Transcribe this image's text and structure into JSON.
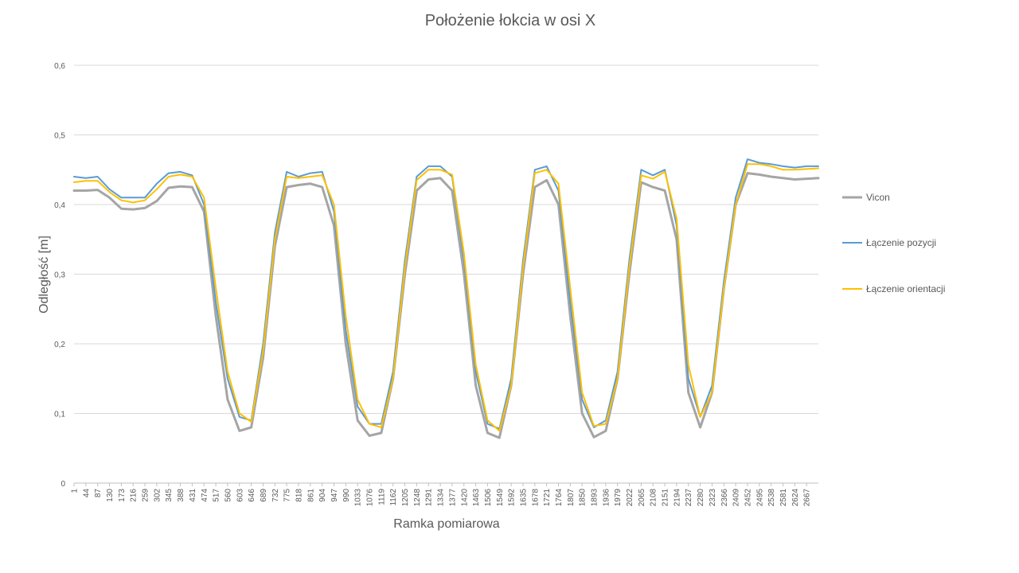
{
  "chart_data": {
    "type": "line",
    "title": "Położenie łokcia w osi X",
    "xlabel": "Ramka pomiarowa",
    "ylabel": "Odległość [m]",
    "ylim": [
      0,
      0.6
    ],
    "y_ticks": [
      "0",
      "0,1",
      "0,2",
      "0,3",
      "0,4",
      "0,5",
      "0,6"
    ],
    "x_range": [
      1,
      2710
    ],
    "x_ticks": [
      "1",
      "44",
      "87",
      "130",
      "173",
      "216",
      "259",
      "302",
      "345",
      "388",
      "431",
      "474",
      "517",
      "560",
      "603",
      "646",
      "689",
      "732",
      "775",
      "818",
      "861",
      "904",
      "947",
      "990",
      "1033",
      "1076",
      "1119",
      "1162",
      "1205",
      "1248",
      "1291",
      "1334",
      "1377",
      "1420",
      "1463",
      "1506",
      "1549",
      "1592",
      "1635",
      "1678",
      "1721",
      "1764",
      "1807",
      "1850",
      "1893",
      "1936",
      "1979",
      "2022",
      "2065",
      "2108",
      "2151",
      "2194",
      "2237",
      "2280",
      "2323",
      "2366",
      "2409",
      "2452",
      "2495",
      "2538",
      "2581",
      "2624",
      "2667"
    ],
    "grid": true,
    "legend_position": "right",
    "series": [
      {
        "name": "Vicon",
        "color": "#a5a5a5",
        "x": [
          1,
          44,
          87,
          130,
          173,
          216,
          259,
          302,
          345,
          388,
          431,
          474,
          517,
          560,
          603,
          646,
          689,
          732,
          775,
          818,
          861,
          904,
          947,
          990,
          1033,
          1076,
          1119,
          1162,
          1205,
          1248,
          1291,
          1334,
          1377,
          1420,
          1463,
          1506,
          1549,
          1592,
          1635,
          1678,
          1721,
          1764,
          1807,
          1850,
          1893,
          1936,
          1979,
          2022,
          2065,
          2108,
          2151,
          2194,
          2237,
          2280,
          2323,
          2366,
          2409,
          2452,
          2495,
          2538,
          2581,
          2624,
          2667,
          2710
        ],
        "values": [
          0.42,
          0.42,
          0.421,
          0.41,
          0.394,
          0.393,
          0.395,
          0.405,
          0.424,
          0.426,
          0.425,
          0.39,
          0.24,
          0.12,
          0.075,
          0.08,
          0.18,
          0.34,
          0.425,
          0.428,
          0.43,
          0.425,
          0.37,
          0.2,
          0.09,
          0.068,
          0.072,
          0.15,
          0.3,
          0.42,
          0.436,
          0.438,
          0.42,
          0.3,
          0.14,
          0.072,
          0.065,
          0.14,
          0.3,
          0.425,
          0.435,
          0.4,
          0.24,
          0.1,
          0.066,
          0.075,
          0.15,
          0.3,
          0.432,
          0.425,
          0.42,
          0.35,
          0.13,
          0.08,
          0.13,
          0.28,
          0.4,
          0.445,
          0.443,
          0.44,
          0.438,
          0.436,
          0.437,
          0.438
        ]
      },
      {
        "name": "Łączenie pozycji",
        "color": "#5b9bd5",
        "x": [
          1,
          44,
          87,
          130,
          173,
          216,
          259,
          302,
          345,
          388,
          431,
          474,
          517,
          560,
          603,
          646,
          689,
          732,
          775,
          818,
          861,
          904,
          947,
          990,
          1033,
          1076,
          1119,
          1162,
          1205,
          1248,
          1291,
          1334,
          1377,
          1420,
          1463,
          1506,
          1549,
          1592,
          1635,
          1678,
          1721,
          1764,
          1807,
          1850,
          1893,
          1936,
          1979,
          2022,
          2065,
          2108,
          2151,
          2194,
          2237,
          2280,
          2323,
          2366,
          2409,
          2452,
          2495,
          2538,
          2581,
          2624,
          2667,
          2710
        ],
        "values": [
          0.44,
          0.438,
          0.44,
          0.422,
          0.41,
          0.41,
          0.41,
          0.43,
          0.445,
          0.447,
          0.442,
          0.4,
          0.26,
          0.15,
          0.095,
          0.09,
          0.2,
          0.36,
          0.447,
          0.44,
          0.445,
          0.447,
          0.39,
          0.22,
          0.11,
          0.085,
          0.085,
          0.16,
          0.32,
          0.44,
          0.455,
          0.455,
          0.44,
          0.32,
          0.16,
          0.085,
          0.078,
          0.15,
          0.32,
          0.45,
          0.455,
          0.42,
          0.26,
          0.12,
          0.08,
          0.09,
          0.16,
          0.32,
          0.45,
          0.442,
          0.45,
          0.37,
          0.15,
          0.095,
          0.14,
          0.29,
          0.41,
          0.465,
          0.46,
          0.458,
          0.455,
          0.453,
          0.455,
          0.455
        ]
      },
      {
        "name": "Łączenie orientacji",
        "color": "#ffc000",
        "x": [
          1,
          44,
          87,
          130,
          173,
          216,
          259,
          302,
          345,
          388,
          431,
          474,
          517,
          560,
          603,
          646,
          689,
          732,
          775,
          818,
          861,
          904,
          947,
          990,
          1033,
          1076,
          1119,
          1162,
          1205,
          1248,
          1291,
          1334,
          1377,
          1420,
          1463,
          1506,
          1549,
          1592,
          1635,
          1678,
          1721,
          1764,
          1807,
          1850,
          1893,
          1936,
          1979,
          2022,
          2065,
          2108,
          2151,
          2194,
          2237,
          2280,
          2323,
          2366,
          2409,
          2452,
          2495,
          2538,
          2581,
          2624,
          2667,
          2710
        ],
        "values": [
          0.432,
          0.434,
          0.434,
          0.418,
          0.406,
          0.403,
          0.406,
          0.422,
          0.44,
          0.443,
          0.44,
          0.41,
          0.28,
          0.16,
          0.1,
          0.088,
          0.19,
          0.35,
          0.44,
          0.438,
          0.44,
          0.442,
          0.4,
          0.24,
          0.12,
          0.085,
          0.08,
          0.15,
          0.31,
          0.435,
          0.45,
          0.45,
          0.443,
          0.33,
          0.17,
          0.09,
          0.075,
          0.14,
          0.31,
          0.445,
          0.45,
          0.43,
          0.28,
          0.13,
          0.082,
          0.085,
          0.15,
          0.31,
          0.442,
          0.437,
          0.447,
          0.38,
          0.17,
          0.095,
          0.13,
          0.28,
          0.4,
          0.458,
          0.458,
          0.455,
          0.45,
          0.45,
          0.451,
          0.452
        ]
      }
    ]
  }
}
